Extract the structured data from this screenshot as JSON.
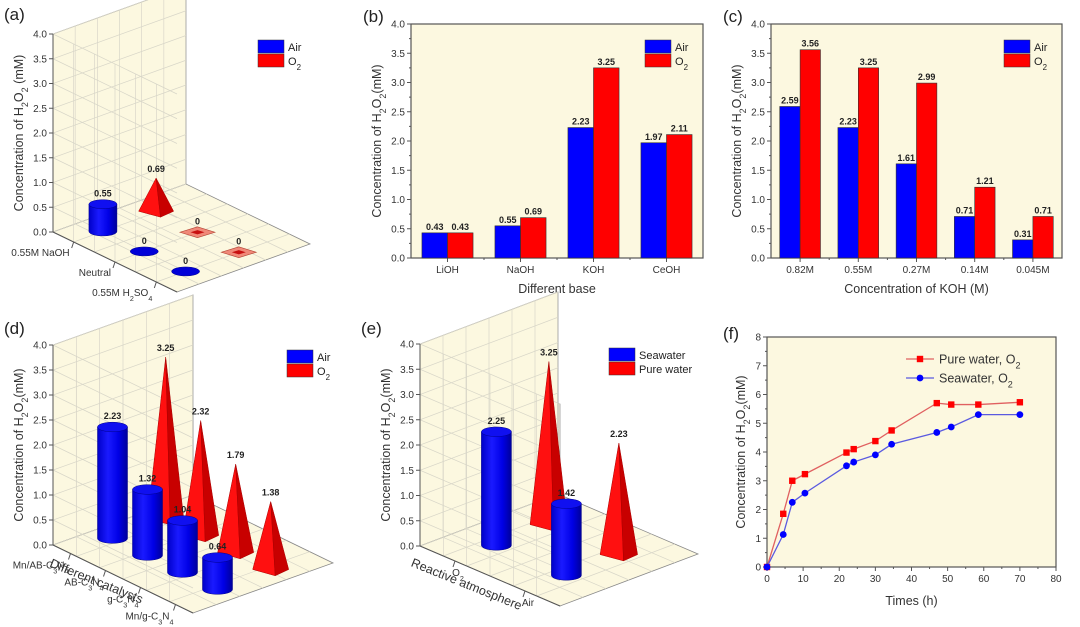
{
  "colors": {
    "plot_bg": "#fcf8e0",
    "air": "#0000ff",
    "o2": "#ff0000",
    "grid": "#d8d6c8",
    "frame": "#555555"
  },
  "chart_data": [
    {
      "id": "a",
      "panel_label": "(a)",
      "type": "bar3d",
      "ylabel": "Concentration of H2O2 (mM)",
      "ylabel_parts": [
        "Concentration of H",
        "2",
        "O",
        "2",
        " (mM)"
      ],
      "ylim": [
        0,
        4.0
      ],
      "yticks": [
        "0.0",
        "0.5",
        "1.0",
        "1.5",
        "2.0",
        "2.5",
        "3.0",
        "3.5",
        "4.0"
      ],
      "categories": [
        "0.55M NaOH",
        "Neutral",
        "0.55M H2SO4"
      ],
      "category_labels": [
        {
          "parts": [
            "0.55M NaOH"
          ]
        },
        {
          "parts": [
            "Neutral"
          ]
        },
        {
          "parts": [
            "0.55M H",
            "2",
            "SO",
            "4"
          ]
        }
      ],
      "legend": [
        {
          "name": "Air",
          "shape": "cylinder"
        },
        {
          "name": "O2",
          "parts": [
            "O",
            "2"
          ],
          "shape": "pyramid"
        }
      ],
      "legend_position": "top-right",
      "series": [
        {
          "name": "Air",
          "values": [
            0.55,
            0,
            0
          ],
          "labels": [
            "0.55",
            "0",
            "0"
          ]
        },
        {
          "name": "O2",
          "values": [
            0.69,
            0,
            0
          ],
          "labels": [
            "0.69",
            "0",
            "0"
          ]
        }
      ]
    },
    {
      "id": "b",
      "panel_label": "(b)",
      "type": "bar",
      "xlabel": "Different base",
      "ylabel": "Concentration of H2O2(mM)",
      "ylabel_parts": [
        "Concentration of H",
        "2",
        "O",
        "2",
        "(mM)"
      ],
      "ylim": [
        0,
        4.0
      ],
      "yticks": [
        "0.0",
        "0.5",
        "1.0",
        "1.5",
        "2.0",
        "2.5",
        "3.0",
        "3.5",
        "4.0"
      ],
      "categories": [
        "LiOH",
        "NaOH",
        "KOH",
        "CeOH"
      ],
      "legend": [
        {
          "name": "Air"
        },
        {
          "name": "O2",
          "parts": [
            "O",
            "2"
          ]
        }
      ],
      "legend_position": "top-right",
      "series": [
        {
          "name": "Air",
          "values": [
            0.43,
            0.55,
            2.23,
            1.97
          ],
          "labels": [
            "0.43",
            "0.55",
            "2.23",
            "1.97"
          ]
        },
        {
          "name": "O2",
          "values": [
            0.43,
            0.69,
            3.25,
            2.11
          ],
          "labels": [
            "0.43",
            "0.69",
            "3.25",
            "2.11"
          ]
        }
      ]
    },
    {
      "id": "c",
      "panel_label": "(c)",
      "type": "bar",
      "xlabel": "Concentration of KOH (M)",
      "ylabel": "Concentration of H2O2(mM)",
      "ylabel_parts": [
        "Concentration of H",
        "2",
        "O",
        "2",
        "(mM)"
      ],
      "ylim": [
        0,
        4.0
      ],
      "yticks": [
        "0.0",
        "0.5",
        "1.0",
        "1.5",
        "2.0",
        "2.5",
        "3.0",
        "3.5",
        "4.0"
      ],
      "categories": [
        "0.82M",
        "0.55M",
        "0.27M",
        "0.14M",
        "0.045M"
      ],
      "legend": [
        {
          "name": "Air"
        },
        {
          "name": "O2",
          "parts": [
            "O",
            "2"
          ]
        }
      ],
      "legend_position": "top-right",
      "series": [
        {
          "name": "Air",
          "values": [
            2.59,
            2.23,
            1.61,
            0.71,
            0.31
          ],
          "labels": [
            "2.59",
            "2.23",
            "1.61",
            "0.71",
            "0.31"
          ]
        },
        {
          "name": "O2",
          "values": [
            3.56,
            3.25,
            2.99,
            1.21,
            0.71
          ],
          "labels": [
            "3.56",
            "3.25",
            "2.99",
            "1.21",
            "0.71"
          ]
        }
      ]
    },
    {
      "id": "d",
      "panel_label": "(d)",
      "type": "bar3d",
      "xlabel": "Different catalysts",
      "ylabel": "Concentration of H2O2(mM)",
      "ylabel_parts": [
        "Concentration of H",
        "2",
        "O",
        "2",
        "(mM)"
      ],
      "ylim": [
        0,
        4.0
      ],
      "yticks": [
        "0.0",
        "0.5",
        "1.0",
        "1.5",
        "2.0",
        "2.5",
        "3.0",
        "3.5",
        "4.0"
      ],
      "categories": [
        "Mn/AB-C3N4",
        "AB-C3N4",
        "g-C3N4",
        "Mn/g-C3N4"
      ],
      "category_labels": [
        {
          "parts": [
            "Mn/AB-C",
            "3",
            "N",
            "4"
          ]
        },
        {
          "parts": [
            "AB-C",
            "3",
            "N",
            "4"
          ]
        },
        {
          "parts": [
            "g-C",
            "3",
            "N",
            "4"
          ]
        },
        {
          "parts": [
            "Mn/g-C",
            "3",
            "N",
            "4"
          ]
        }
      ],
      "legend": [
        {
          "name": "Air",
          "shape": "cylinder"
        },
        {
          "name": "O2",
          "parts": [
            "O",
            "2"
          ],
          "shape": "pyramid"
        }
      ],
      "legend_position": "top-right",
      "series": [
        {
          "name": "Air",
          "values": [
            2.23,
            1.32,
            1.04,
            0.64
          ],
          "labels": [
            "2.23",
            "1.32",
            "1.04",
            "0.64"
          ]
        },
        {
          "name": "O2",
          "values": [
            3.25,
            2.32,
            1.79,
            1.38
          ],
          "labels": [
            "3.25",
            "2.32",
            "1.79",
            "1.38"
          ]
        }
      ]
    },
    {
      "id": "e",
      "panel_label": "(e)",
      "type": "bar3d",
      "xlabel": "Reactive atmosphere",
      "ylabel": "Concentration of H2O2(mM)",
      "ylabel_parts": [
        "Concentration of H",
        "2",
        "O",
        "2",
        "(mM)"
      ],
      "ylim": [
        0,
        4.0
      ],
      "yticks": [
        "0.0",
        "0.5",
        "1.0",
        "1.5",
        "2.0",
        "2.5",
        "3.0",
        "3.5",
        "4.0"
      ],
      "categories": [
        "O2",
        "Air"
      ],
      "category_labels": [
        {
          "parts": [
            "O",
            "2"
          ]
        },
        {
          "parts": [
            "Air"
          ]
        }
      ],
      "legend": [
        {
          "name": "Seawater",
          "shape": "cylinder"
        },
        {
          "name": "Pure water",
          "shape": "pyramid"
        }
      ],
      "legend_position": "top-right",
      "series": [
        {
          "name": "Seawater",
          "values": [
            2.25,
            1.42
          ],
          "labels": [
            "2.25",
            "1.42"
          ]
        },
        {
          "name": "Pure water",
          "values": [
            3.25,
            2.23
          ],
          "labels": [
            "3.25",
            "2.23"
          ]
        }
      ]
    },
    {
      "id": "f",
      "panel_label": "(f)",
      "type": "line",
      "xlabel": "Times (h)",
      "ylabel": "Concentration of H2O2(mM)",
      "ylabel_parts": [
        "Concentration of H",
        "2",
        "O",
        "2",
        "(mM)"
      ],
      "xlim": [
        0,
        80
      ],
      "ylim": [
        0,
        8
      ],
      "xticks": [
        "0",
        "10",
        "20",
        "30",
        "40",
        "50",
        "60",
        "70",
        "80"
      ],
      "yticks": [
        "0",
        "1",
        "2",
        "3",
        "4",
        "5",
        "6",
        "7",
        "8"
      ],
      "legend_position": "top-right",
      "series": [
        {
          "name": "Pure water, O2",
          "parts": [
            "Pure water, O",
            "2"
          ],
          "marker": "square",
          "color": "#ff0000",
          "line_color": "#e06060",
          "x": [
            0,
            4.5,
            7,
            10.5,
            22,
            24,
            30,
            34.5,
            47,
            51,
            58.5,
            70
          ],
          "y": [
            0,
            1.85,
            3.0,
            3.23,
            3.98,
            4.1,
            4.38,
            4.75,
            5.7,
            5.65,
            5.65,
            5.73
          ]
        },
        {
          "name": "Seawater, O2",
          "parts": [
            "Seawater, O",
            "2"
          ],
          "marker": "circle",
          "color": "#0000ff",
          "line_color": "#5a5ae0",
          "x": [
            0,
            4.5,
            7,
            10.5,
            22,
            24,
            30,
            34.5,
            47,
            51,
            58.5,
            70
          ],
          "y": [
            0,
            1.13,
            2.25,
            2.57,
            3.52,
            3.65,
            3.9,
            4.27,
            4.68,
            4.87,
            5.3,
            5.3
          ]
        }
      ]
    }
  ]
}
